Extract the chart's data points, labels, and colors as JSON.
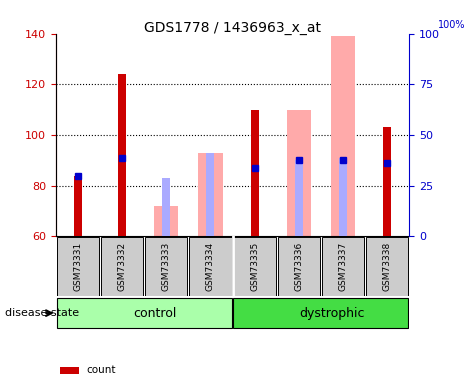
{
  "title": "GDS1778 / 1436963_x_at",
  "samples": [
    "GSM73331",
    "GSM73332",
    "GSM73333",
    "GSM73334",
    "GSM73335",
    "GSM73336",
    "GSM73337",
    "GSM73338"
  ],
  "ylim": [
    60,
    140
  ],
  "yticks_left": [
    60,
    80,
    100,
    120,
    140
  ],
  "yticks_right": [
    0,
    25,
    50,
    75,
    100
  ],
  "count_values": [
    84,
    124,
    null,
    null,
    110,
    null,
    null,
    103
  ],
  "count_color": "#cc0000",
  "rank_values": [
    84,
    91,
    null,
    null,
    87,
    90,
    90,
    89
  ],
  "rank_color": "#0000cc",
  "absent_value_bars": [
    null,
    null,
    72,
    93,
    null,
    110,
    139,
    null
  ],
  "absent_value_color": "#ffaaaa",
  "absent_rank_bars": [
    null,
    null,
    83,
    93,
    null,
    90,
    91,
    null
  ],
  "absent_rank_color": "#aaaaff",
  "control_color": "#aaffaa",
  "dystrophic_color": "#44dd44",
  "sample_box_color": "#cccccc",
  "left_axis_color": "#cc0000",
  "right_axis_color": "#0000cc"
}
